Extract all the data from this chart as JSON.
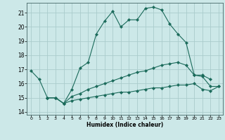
{
  "xlabel": "Humidex (Indice chaleur)",
  "background_color": "#cce8e8",
  "grid_color": "#aacccc",
  "line_color": "#1a6a5a",
  "xlim": [
    -0.5,
    23.5
  ],
  "ylim": [
    13.8,
    21.7
  ],
  "yticks": [
    14,
    15,
    16,
    17,
    18,
    19,
    20,
    21
  ],
  "xticks": [
    0,
    1,
    2,
    3,
    4,
    5,
    6,
    7,
    8,
    9,
    10,
    11,
    12,
    13,
    14,
    15,
    16,
    17,
    18,
    19,
    20,
    21,
    22,
    23
  ],
  "line1_x": [
    0,
    1,
    2,
    3,
    4,
    5,
    6,
    7,
    8,
    9,
    10,
    11,
    12,
    13,
    14,
    15,
    16,
    17,
    18,
    19,
    20,
    21,
    22
  ],
  "line1_y": [
    16.9,
    16.3,
    15.0,
    15.0,
    14.6,
    15.6,
    17.1,
    17.5,
    19.5,
    20.4,
    21.1,
    20.0,
    20.5,
    20.5,
    21.3,
    21.4,
    21.2,
    20.2,
    19.5,
    18.9,
    16.6,
    16.6,
    16.3
  ],
  "line2_x": [
    2,
    3,
    4,
    5,
    6,
    7,
    8,
    9,
    10,
    11,
    12,
    13,
    14,
    15,
    16,
    17,
    18,
    19,
    20,
    21,
    22,
    23
  ],
  "line2_y": [
    15.0,
    15.0,
    14.6,
    15.1,
    15.3,
    15.6,
    15.8,
    16.0,
    16.2,
    16.4,
    16.6,
    16.8,
    16.9,
    17.1,
    17.3,
    17.4,
    17.5,
    17.3,
    16.6,
    16.5,
    15.8,
    15.8
  ],
  "line3_x": [
    2,
    3,
    4,
    5,
    6,
    7,
    8,
    9,
    10,
    11,
    12,
    13,
    14,
    15,
    16,
    17,
    18,
    19,
    20,
    21,
    22,
    23
  ],
  "line3_y": [
    15.0,
    15.0,
    14.6,
    14.8,
    14.9,
    15.0,
    15.1,
    15.2,
    15.3,
    15.4,
    15.4,
    15.5,
    15.6,
    15.7,
    15.7,
    15.8,
    15.9,
    15.9,
    16.0,
    15.6,
    15.5,
    15.8
  ]
}
